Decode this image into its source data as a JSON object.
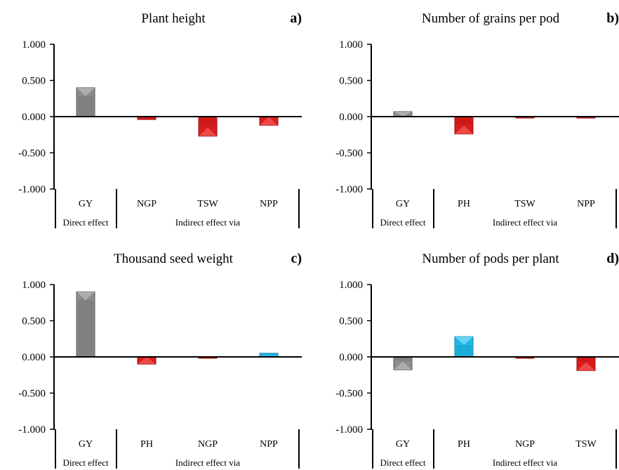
{
  "chart_data": [
    {
      "type": "bar",
      "panel": "a)",
      "title": "Plant height",
      "categories": [
        "GY",
        "NGP",
        "TSW",
        "NPP"
      ],
      "values": [
        0.4,
        -0.04,
        -0.27,
        -0.12
      ],
      "ylim": [
        -1.0,
        1.0
      ],
      "yticks": [
        "1.000",
        "0.500",
        "0.000",
        "-0.500",
        "-1.000"
      ],
      "groups": [
        "Direct effect",
        "Indirect effect  via"
      ]
    },
    {
      "type": "bar",
      "panel": "b)",
      "title": "Number of grains per pod",
      "categories": [
        "GY",
        "PH",
        "TSW",
        "NPP"
      ],
      "values": [
        0.07,
        -0.24,
        -0.01,
        -0.02
      ],
      "ylim": [
        -1.0,
        1.0
      ],
      "yticks": [
        "1.000",
        "0.500",
        "0.000",
        "-0.500",
        "-1.000"
      ],
      "groups": [
        "Direct effect",
        "Indirect effect  via"
      ]
    },
    {
      "type": "bar",
      "panel": "c)",
      "title": "Thousand seed weight",
      "categories": [
        "GY",
        "PH",
        "NGP",
        "NPP"
      ],
      "values": [
        0.9,
        -0.1,
        -0.01,
        0.05
      ],
      "ylim": [
        -1.0,
        1.0
      ],
      "yticks": [
        "1.000",
        "0.500",
        "0.000",
        "-0.500",
        "-1.000"
      ],
      "groups": [
        "Direct effect",
        "Indirect effect  via"
      ]
    },
    {
      "type": "bar",
      "panel": "d)",
      "title": "Number of pods per plant",
      "categories": [
        "GY",
        "PH",
        "NGP",
        "TSW"
      ],
      "values": [
        -0.18,
        0.28,
        -0.01,
        -0.19
      ],
      "ylim": [
        -1.0,
        1.0
      ],
      "yticks": [
        "1.000",
        "0.500",
        "0.000",
        "-0.500",
        "-1.000"
      ],
      "groups": [
        "Direct effect",
        "Indirect effect  via"
      ]
    }
  ],
  "colors": {
    "direct": "#8c8c8c",
    "direct_dark": "#5a5a5a",
    "direct_light": "#b8b8b8",
    "negative": "#dd1c1c",
    "negative_dark": "#9c0e0e",
    "negative_light": "#f25a5a",
    "positive": "#1fb8e6",
    "positive_dark": "#0e86ad",
    "positive_light": "#7fdcf7"
  }
}
